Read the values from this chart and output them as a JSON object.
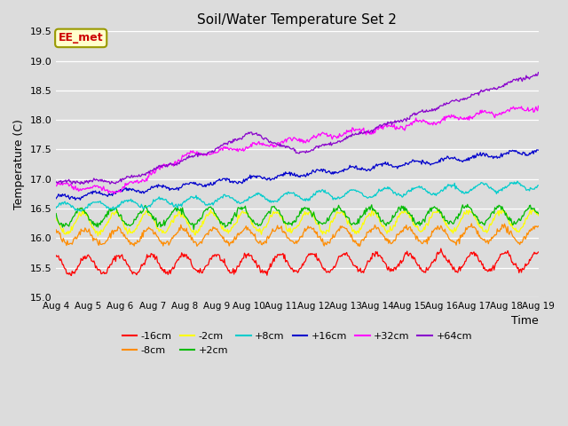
{
  "title": "Soil/Water Temperature Set 2",
  "xlabel": "Time",
  "ylabel": "Temperature (C)",
  "ylim": [
    15.0,
    19.5
  ],
  "yticks": [
    15.0,
    15.5,
    16.0,
    16.5,
    17.0,
    17.5,
    18.0,
    18.5,
    19.0,
    19.5
  ],
  "x_tick_labels": [
    "Aug 4",
    "Aug 5",
    "Aug 6",
    "Aug 7",
    "Aug 8",
    "Aug 9",
    "Aug 10",
    "Aug 11",
    "Aug 12",
    "Aug 13",
    "Aug 14",
    "Aug 15",
    "Aug 16",
    "Aug 17",
    "Aug 18",
    "Aug 19"
  ],
  "background_color": "#dcdcdc",
  "annotation_text": "EE_met",
  "annotation_bg": "#ffffcc",
  "annotation_border": "#999900",
  "series_labels": [
    "-16cm",
    "-8cm",
    "-2cm",
    "+2cm",
    "+8cm",
    "+16cm",
    "+32cm",
    "+64cm"
  ],
  "series_colors": [
    "#ff0000",
    "#ff8c00",
    "#ffff00",
    "#00bb00",
    "#00cccc",
    "#0000cc",
    "#ff00ff",
    "#8800cc"
  ],
  "days": 15,
  "n_points": 600
}
